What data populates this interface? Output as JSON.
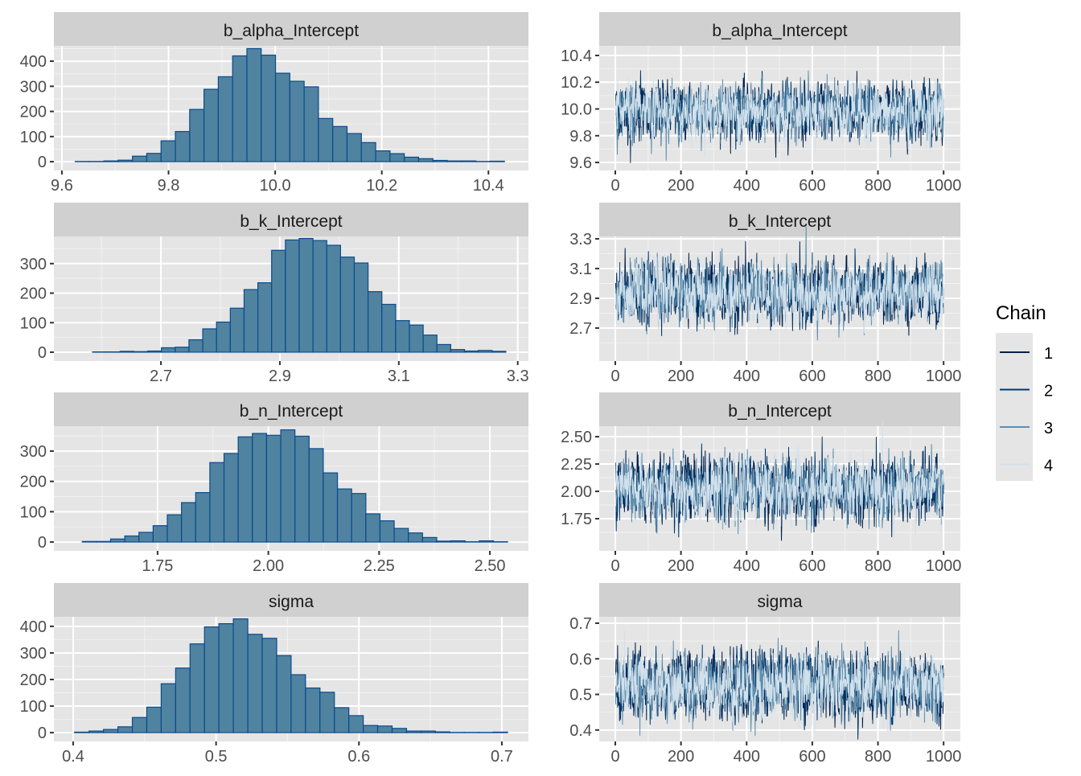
{
  "legend": {
    "title": "Chain",
    "items": [
      {
        "label": "1",
        "color": "#011f4b"
      },
      {
        "label": "2",
        "color": "#03396c"
      },
      {
        "label": "3",
        "color": "#5f8fae"
      },
      {
        "label": "4",
        "color": "#d1e1ec"
      }
    ]
  },
  "colors": {
    "bar_fill": "#5083a0",
    "bar_stroke": "#0b4a8c",
    "panel_bg": "#e5e5e5",
    "strip_bg": "#d0d0d0"
  },
  "chart_data": [
    {
      "type": "bar",
      "title": "b_alpha_Intercept",
      "bins": 30,
      "range": [
        9.625,
        10.43
      ],
      "values": [
        1,
        1,
        3,
        6,
        22,
        33,
        83,
        120,
        208,
        288,
        338,
        421,
        450,
        424,
        352,
        320,
        298,
        172,
        140,
        112,
        76,
        43,
        32,
        18,
        12,
        5,
        3,
        3,
        1,
        2
      ],
      "xticks": [
        "9.6",
        "9.8",
        "10.0",
        "10.2",
        "10.4"
      ],
      "xtick_values": [
        9.6,
        9.8,
        10.0,
        10.2,
        10.4
      ],
      "yticks": [
        "0",
        "100",
        "200",
        "300",
        "400"
      ],
      "ytick_values": [
        0,
        100,
        200,
        300,
        400
      ],
      "xlim": [
        9.585,
        10.475
      ],
      "ylim": [
        -35,
        461
      ]
    },
    {
      "type": "line",
      "title": "b_alpha_Intercept",
      "iterations": 1000,
      "chains": 4,
      "mean": 9.98,
      "sd": 0.1,
      "xticks": [
        "0",
        "200",
        "400",
        "600",
        "800",
        "1000"
      ],
      "xtick_values": [
        0,
        200,
        400,
        600,
        800,
        1000
      ],
      "yticks": [
        "9.6",
        "9.8",
        "10.0",
        "10.2",
        "10.4"
      ],
      "ytick_values": [
        9.6,
        9.8,
        10.0,
        10.2,
        10.4
      ],
      "xlim": [
        -49,
        1051
      ],
      "ylim": [
        9.54,
        10.472
      ]
    },
    {
      "type": "bar",
      "title": "b_k_Intercept",
      "bins": 30,
      "range": [
        2.585,
        3.28
      ],
      "values": [
        1,
        1,
        3,
        2,
        4,
        15,
        17,
        42,
        79,
        102,
        149,
        212,
        235,
        345,
        380,
        385,
        378,
        362,
        322,
        302,
        205,
        162,
        107,
        92,
        58,
        26,
        9,
        4,
        6,
        3
      ],
      "xticks": [
        "2.7",
        "2.9",
        "3.1",
        "3.3"
      ],
      "xtick_values": [
        2.7,
        2.9,
        3.1,
        3.3
      ],
      "yticks": [
        "0",
        "100",
        "200",
        "300"
      ],
      "ytick_values": [
        0,
        100,
        200,
        300
      ],
      "xlim": [
        2.52,
        3.318
      ],
      "ylim": [
        -30,
        392
      ]
    },
    {
      "type": "line",
      "title": "b_k_Intercept",
      "iterations": 1000,
      "chains": 4,
      "mean": 2.94,
      "sd": 0.1,
      "xticks": [
        "0",
        "200",
        "400",
        "600",
        "800",
        "1000"
      ],
      "xtick_values": [
        0,
        200,
        400,
        600,
        800,
        1000
      ],
      "yticks": [
        "2.7",
        "2.9",
        "3.1",
        "3.3"
      ],
      "ytick_values": [
        2.7,
        2.9,
        3.1,
        3.3
      ],
      "xlim": [
        -49,
        1051
      ],
      "ylim": [
        2.478,
        3.316
      ]
    },
    {
      "type": "bar",
      "title": "b_n_Intercept",
      "bins": 30,
      "range": [
        1.58,
        2.54
      ],
      "values": [
        2,
        2,
        10,
        20,
        32,
        54,
        90,
        130,
        163,
        262,
        292,
        347,
        358,
        352,
        370,
        349,
        308,
        228,
        175,
        160,
        93,
        70,
        45,
        30,
        15,
        3,
        4,
        1,
        4,
        1
      ],
      "xticks": [
        "1.75",
        "2.00",
        "2.25",
        "2.50"
      ],
      "xtick_values": [
        1.75,
        2.0,
        2.25,
        2.5
      ],
      "yticks": [
        "0",
        "100",
        "200",
        "300"
      ],
      "ytick_values": [
        0,
        100,
        200,
        300
      ],
      "xlim": [
        1.516,
        2.587
      ],
      "ylim": [
        -29,
        382
      ]
    },
    {
      "type": "line",
      "title": "b_n_Intercept",
      "iterations": 1000,
      "chains": 4,
      "mean": 2.02,
      "sd": 0.14,
      "xticks": [
        "0",
        "200",
        "400",
        "600",
        "800",
        "1000"
      ],
      "xtick_values": [
        0,
        200,
        400,
        600,
        800,
        1000
      ],
      "yticks": [
        "1.75",
        "2.00",
        "2.25",
        "2.50"
      ],
      "ytick_values": [
        1.75,
        2.0,
        2.25,
        2.5
      ],
      "xlim": [
        -49,
        1051
      ],
      "ylim": [
        1.456,
        2.596
      ]
    },
    {
      "type": "bar",
      "title": "sigma",
      "bins": 30,
      "range": [
        0.401,
        0.704
      ],
      "values": [
        2,
        6,
        12,
        22,
        57,
        96,
        184,
        243,
        334,
        398,
        410,
        428,
        370,
        355,
        290,
        218,
        168,
        152,
        94,
        64,
        27,
        25,
        16,
        6,
        6,
        3,
        1,
        1,
        1,
        2
      ],
      "xticks": [
        "0.4",
        "0.5",
        "0.6",
        "0.7"
      ],
      "xtick_values": [
        0.4,
        0.5,
        0.6,
        0.7
      ],
      "yticks": [
        "0",
        "100",
        "200",
        "300",
        "400"
      ],
      "ytick_values": [
        0,
        100,
        200,
        300,
        400
      ],
      "xlim": [
        0.3865,
        0.7186
      ],
      "ylim": [
        -33,
        436
      ]
    },
    {
      "type": "line",
      "title": "sigma",
      "iterations": 1000,
      "chains": 4,
      "mean": 0.525,
      "sd": 0.045,
      "xticks": [
        "0",
        "200",
        "400",
        "600",
        "800",
        "1000"
      ],
      "xtick_values": [
        0,
        200,
        400,
        600,
        800,
        1000
      ],
      "yticks": [
        "0.4",
        "0.5",
        "0.6",
        "0.7"
      ],
      "ytick_values": [
        0.4,
        0.5,
        0.6,
        0.7
      ],
      "xlim": [
        -49,
        1051
      ],
      "ylim": [
        0.368,
        0.718
      ]
    }
  ]
}
